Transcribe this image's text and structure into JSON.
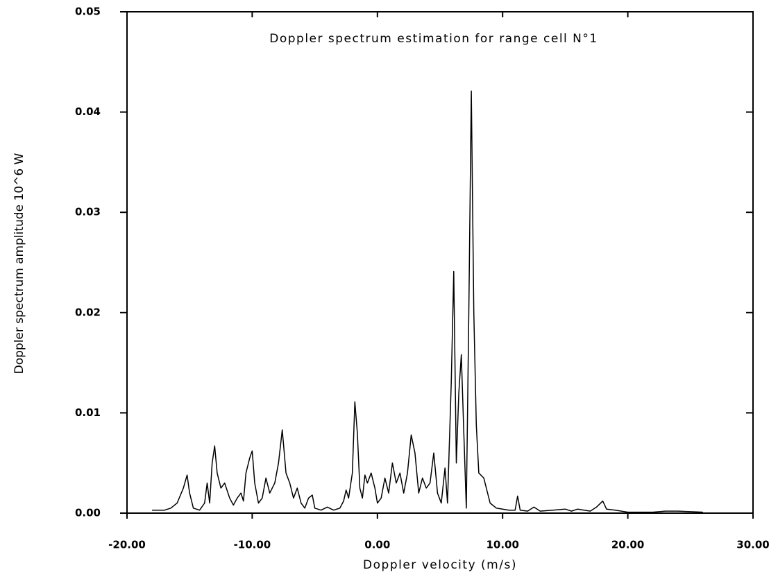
{
  "chart_data": {
    "type": "line",
    "title": "Doppler spectrum estimation for range cell N°1",
    "xlabel": "Doppler velocity (m/s)",
    "ylabel": "Doppler spectrum amplitude 10^6 W",
    "xlim": [
      -20,
      30
    ],
    "ylim": [
      0,
      0.05
    ],
    "xticks": [
      {
        "value": -20,
        "label": "-20.00"
      },
      {
        "value": -10,
        "label": "-10.00"
      },
      {
        "value": 0,
        "label": "0.00"
      },
      {
        "value": 10,
        "label": "10.00"
      },
      {
        "value": 20,
        "label": "20.00"
      },
      {
        "value": 30,
        "label": "30.00"
      }
    ],
    "yticks": [
      {
        "value": 0,
        "label": "0.00"
      },
      0.01,
      0.02,
      0.03,
      0.04,
      0.05
    ],
    "series": [
      {
        "color": "#000000",
        "x": [
          -18,
          -17,
          -16.5,
          -16,
          -15.5,
          -15.2,
          -15,
          -14.7,
          -14.2,
          -13.8,
          -13.6,
          -13.4,
          -13.2,
          -13,
          -12.8,
          -12.5,
          -12.2,
          -11.8,
          -11.5,
          -11.2,
          -10.9,
          -10.7,
          -10.5,
          -10.2,
          -10,
          -9.8,
          -9.5,
          -9.2,
          -8.9,
          -8.6,
          -8.2,
          -7.9,
          -7.6,
          -7.3,
          -7,
          -6.7,
          -6.4,
          -6.1,
          -5.8,
          -5.5,
          -5.2,
          -5,
          -4.5,
          -4,
          -3.5,
          -3,
          -2.7,
          -2.5,
          -2.3,
          -2,
          -1.8,
          -1.6,
          -1.4,
          -1.2,
          -1,
          -0.8,
          -0.5,
          -0.2,
          0,
          0.3,
          0.6,
          0.9,
          1.2,
          1.5,
          1.8,
          2.1,
          2.4,
          2.7,
          3,
          3.3,
          3.6,
          3.9,
          4.2,
          4.5,
          4.8,
          5.1,
          5.4,
          5.6,
          5.9,
          6.1,
          6.3,
          6.5,
          6.7,
          6.9,
          7.1,
          7.3,
          7.5,
          7.7,
          7.9,
          8.1,
          8.5,
          9,
          9.5,
          10,
          10.5,
          11,
          11.2,
          11.4,
          12,
          12.5,
          13,
          14,
          15,
          15.5,
          16,
          17,
          17.5,
          18,
          18.3,
          19,
          20,
          22,
          23,
          24,
          26
        ],
        "values": [
          0.0003,
          0.0003,
          0.0005,
          0.001,
          0.0025,
          0.0038,
          0.002,
          0.0005,
          0.0003,
          0.001,
          0.003,
          0.001,
          0.005,
          0.0067,
          0.004,
          0.0025,
          0.003,
          0.0015,
          0.0008,
          0.0015,
          0.002,
          0.0012,
          0.004,
          0.0055,
          0.0062,
          0.003,
          0.001,
          0.0015,
          0.0035,
          0.002,
          0.003,
          0.005,
          0.0083,
          0.004,
          0.003,
          0.0015,
          0.0025,
          0.001,
          0.0005,
          0.0015,
          0.0018,
          0.0005,
          0.0003,
          0.0006,
          0.0003,
          0.0005,
          0.0012,
          0.0023,
          0.0015,
          0.004,
          0.0111,
          0.008,
          0.0025,
          0.0015,
          0.0038,
          0.003,
          0.004,
          0.0025,
          0.001,
          0.0015,
          0.0035,
          0.002,
          0.005,
          0.003,
          0.004,
          0.002,
          0.004,
          0.0078,
          0.006,
          0.002,
          0.0035,
          0.0025,
          0.003,
          0.006,
          0.002,
          0.001,
          0.0045,
          0.001,
          0.013,
          0.0241,
          0.005,
          0.012,
          0.0158,
          0.008,
          0.0005,
          0.02,
          0.0421,
          0.02,
          0.0088,
          0.004,
          0.0035,
          0.001,
          0.0005,
          0.0004,
          0.0003,
          0.0003,
          0.0017,
          0.0003,
          0.0002,
          0.0006,
          0.0002,
          0.0003,
          0.0004,
          0.0002,
          0.0004,
          0.0002,
          0.0006,
          0.0012,
          0.0004,
          0.0003,
          0.0001,
          0.0001,
          0.0002,
          0.0002,
          0.0001
        ]
      }
    ]
  }
}
